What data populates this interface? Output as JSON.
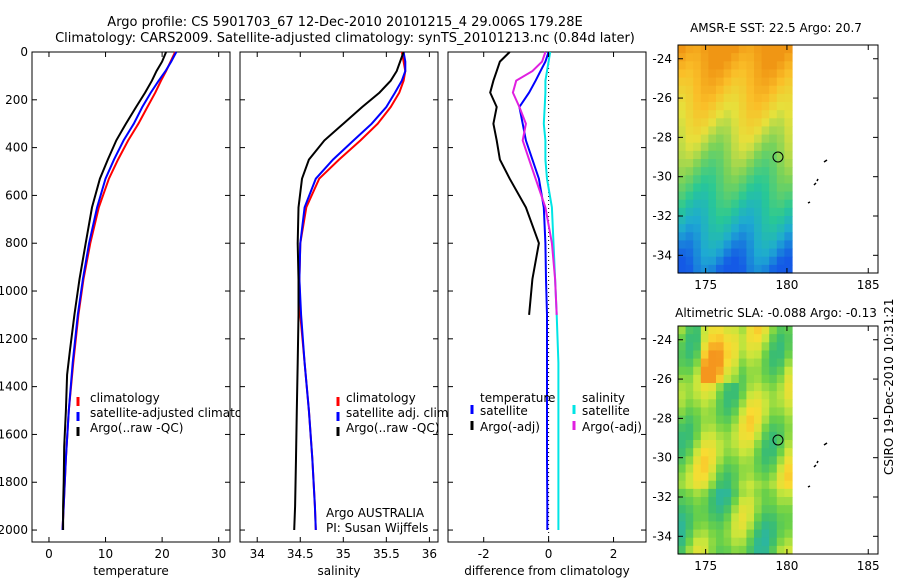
{
  "header": {
    "line1": "Argo profile: CS 5901703_67 12-Dec-2010 20101215_4 29.006S 179.28E",
    "line2": "Climatology: CARS2009. Satellite-adjusted climatology: synTS_20101213.nc (0.84d later)"
  },
  "depth_ticks": [
    "0",
    "200",
    "400",
    "600",
    "800",
    "1000",
    "1200",
    "1400",
    "1600",
    "1800",
    "2000"
  ],
  "credit": {
    "line1": "Argo AUSTRALIA",
    "line2": "PI: Susan Wijffels"
  },
  "side_label": "CSIRO 19-Dec-2010 10:31:21",
  "colors": {
    "climatology": "#ff0000",
    "satellite": "#0000ff",
    "argo": "#000000",
    "sal_sat": "#00e5e5",
    "sal_argo": "#e020e0"
  },
  "chart_data": [
    {
      "type": "line",
      "xlabel": "temperature",
      "xticks": [
        "0",
        "10",
        "20",
        "30"
      ],
      "xlim": [
        -3,
        32
      ],
      "ylim": [
        2050,
        0
      ],
      "legend": [
        "climatology",
        "satellite-adjusted climatology",
        "Argo(..raw -QC)"
      ],
      "series": [
        {
          "name": "climatology",
          "x": [
            22.3,
            21.5,
            20.7,
            19.8,
            18.8,
            17.4,
            15.8,
            14.0,
            12.2,
            10.6,
            8.8,
            7.3,
            6.1,
            5.2,
            4.3,
            3.5,
            3.0,
            2.6,
            2.4
          ],
          "y": [
            0,
            40,
            80,
            120,
            170,
            230,
            300,
            370,
            450,
            530,
            650,
            800,
            950,
            1100,
            1300,
            1500,
            1700,
            1900,
            2000
          ]
        },
        {
          "name": "satellite-adjusted climatology",
          "x": [
            22.5,
            21.6,
            20.6,
            19.4,
            18.0,
            16.5,
            15.0,
            13.2,
            11.5,
            10.0,
            8.5,
            7.1,
            6.0,
            5.1,
            4.2,
            3.5,
            3.0,
            2.6,
            2.4
          ],
          "y": [
            0,
            40,
            80,
            120,
            170,
            230,
            300,
            370,
            450,
            530,
            650,
            800,
            950,
            1100,
            1300,
            1500,
            1700,
            1900,
            2000
          ]
        },
        {
          "name": "Argo(..raw -QC)",
          "x": [
            20.7,
            20.0,
            19.0,
            18.2,
            17.0,
            15.4,
            13.6,
            11.9,
            10.4,
            9.0,
            7.6,
            6.5,
            5.4,
            4.5,
            3.7,
            3.2,
            3.0,
            2.7,
            2.6,
            2.5,
            2.5
          ],
          "y": [
            0,
            40,
            80,
            120,
            170,
            230,
            300,
            370,
            450,
            530,
            650,
            800,
            950,
            1100,
            1250,
            1350,
            1500,
            1650,
            1800,
            1900,
            2000
          ]
        }
      ]
    },
    {
      "type": "line",
      "xlabel": "salinity",
      "xticks": [
        "34",
        "34.5",
        "35",
        "35.5",
        "36"
      ],
      "xlim": [
        33.8,
        36.1
      ],
      "ylim": [
        2050,
        0
      ],
      "legend": [
        "climatology",
        "satellite adj. clim.",
        "Argo(..raw -QC)"
      ],
      "series": [
        {
          "name": "climatology",
          "x": [
            35.68,
            35.7,
            35.72,
            35.7,
            35.65,
            35.55,
            35.4,
            35.2,
            34.95,
            34.72,
            34.57,
            34.5,
            34.49,
            34.5,
            34.55,
            34.6,
            34.64,
            34.67,
            34.68
          ],
          "y": [
            0,
            40,
            80,
            120,
            170,
            230,
            300,
            370,
            450,
            530,
            650,
            800,
            950,
            1100,
            1300,
            1500,
            1700,
            1900,
            2000
          ]
        },
        {
          "name": "satellite adj. clim.",
          "x": [
            35.7,
            35.72,
            35.72,
            35.68,
            35.6,
            35.5,
            35.33,
            35.12,
            34.88,
            34.68,
            34.55,
            34.5,
            34.49,
            34.51,
            34.55,
            34.6,
            34.64,
            34.67,
            34.68
          ],
          "y": [
            0,
            40,
            80,
            120,
            170,
            230,
            300,
            370,
            450,
            530,
            650,
            800,
            950,
            1100,
            1300,
            1500,
            1700,
            1900,
            2000
          ]
        },
        {
          "name": "Argo(..raw -QC)",
          "x": [
            35.7,
            35.66,
            35.62,
            35.55,
            35.42,
            35.22,
            35.0,
            34.78,
            34.6,
            34.52,
            34.48,
            34.47,
            34.48,
            34.48,
            34.47,
            34.46,
            34.45,
            34.44,
            34.43
          ],
          "y": [
            0,
            40,
            80,
            120,
            170,
            230,
            300,
            370,
            450,
            530,
            650,
            800,
            950,
            1100,
            1300,
            1500,
            1700,
            1900,
            2000
          ]
        }
      ]
    },
    {
      "type": "line",
      "xlabel": "difference from climatology",
      "xticks": [
        "-2",
        "0",
        "2"
      ],
      "xlim": [
        -3.1,
        3.0
      ],
      "ylim": [
        2050,
        0
      ],
      "legend": [
        "temperature",
        "satellite",
        "Argo(-adj)",
        "salinity",
        "satellite",
        "Argo(-adj)"
      ],
      "series": [
        {
          "name": "temperature satellite",
          "x": [
            0.0,
            -0.1,
            -0.25,
            -0.4,
            -0.6,
            -0.9,
            -0.8,
            -0.7,
            -0.5,
            -0.3,
            -0.15,
            -0.1,
            -0.08,
            -0.05,
            -0.05,
            -0.05,
            -0.05,
            -0.04,
            -0.04
          ],
          "y": [
            0,
            40,
            80,
            120,
            170,
            230,
            300,
            370,
            450,
            530,
            650,
            800,
            950,
            1100,
            1300,
            1500,
            1700,
            1900,
            2000
          ]
        },
        {
          "name": "temperature Argo(-adj)",
          "x": [
            -1.2,
            -1.5,
            -1.6,
            -1.7,
            -1.8,
            -1.6,
            -1.7,
            -1.6,
            -1.5,
            -1.2,
            -0.7,
            -0.3,
            -0.5,
            -0.6
          ],
          "y": [
            0,
            40,
            80,
            120,
            170,
            230,
            300,
            370,
            450,
            530,
            650,
            800,
            950,
            1100
          ]
        },
        {
          "name": "salinity satellite",
          "x": [
            0.05,
            0.0,
            -0.05,
            -0.1,
            -0.1,
            -0.12,
            -0.15,
            -0.1,
            -0.1,
            -0.05,
            0.1,
            0.15,
            0.2,
            0.25,
            0.3,
            0.3,
            0.3,
            0.3,
            0.3
          ],
          "y": [
            0,
            40,
            80,
            120,
            170,
            230,
            300,
            370,
            450,
            530,
            650,
            800,
            950,
            1100,
            1300,
            1500,
            1700,
            1900,
            2000
          ]
        },
        {
          "name": "salinity Argo(-adj)",
          "x": [
            -0.1,
            -0.2,
            -0.5,
            -1.0,
            -1.1,
            -0.9,
            -0.7,
            -0.8,
            -0.6,
            -0.4,
            -0.1,
            0.1,
            0.2,
            0.25
          ],
          "y": [
            0,
            40,
            80,
            120,
            170,
            230,
            300,
            370,
            450,
            530,
            650,
            800,
            950,
            1100
          ]
        }
      ]
    }
  ],
  "maps": [
    {
      "title": "AMSR-E SST: 22.5 Argo: 20.7",
      "yticks": [
        "-24",
        "-26",
        "-28",
        "-30",
        "-32",
        "-34"
      ],
      "xticks": [
        "175",
        "180",
        "185"
      ]
    },
    {
      "title": "Altimetric SLA: -0.088 Argo: -0.13",
      "yticks": [
        "-24",
        "-26",
        "-28",
        "-30",
        "-32",
        "-34"
      ],
      "xticks": [
        "175",
        "180",
        "185"
      ]
    }
  ]
}
